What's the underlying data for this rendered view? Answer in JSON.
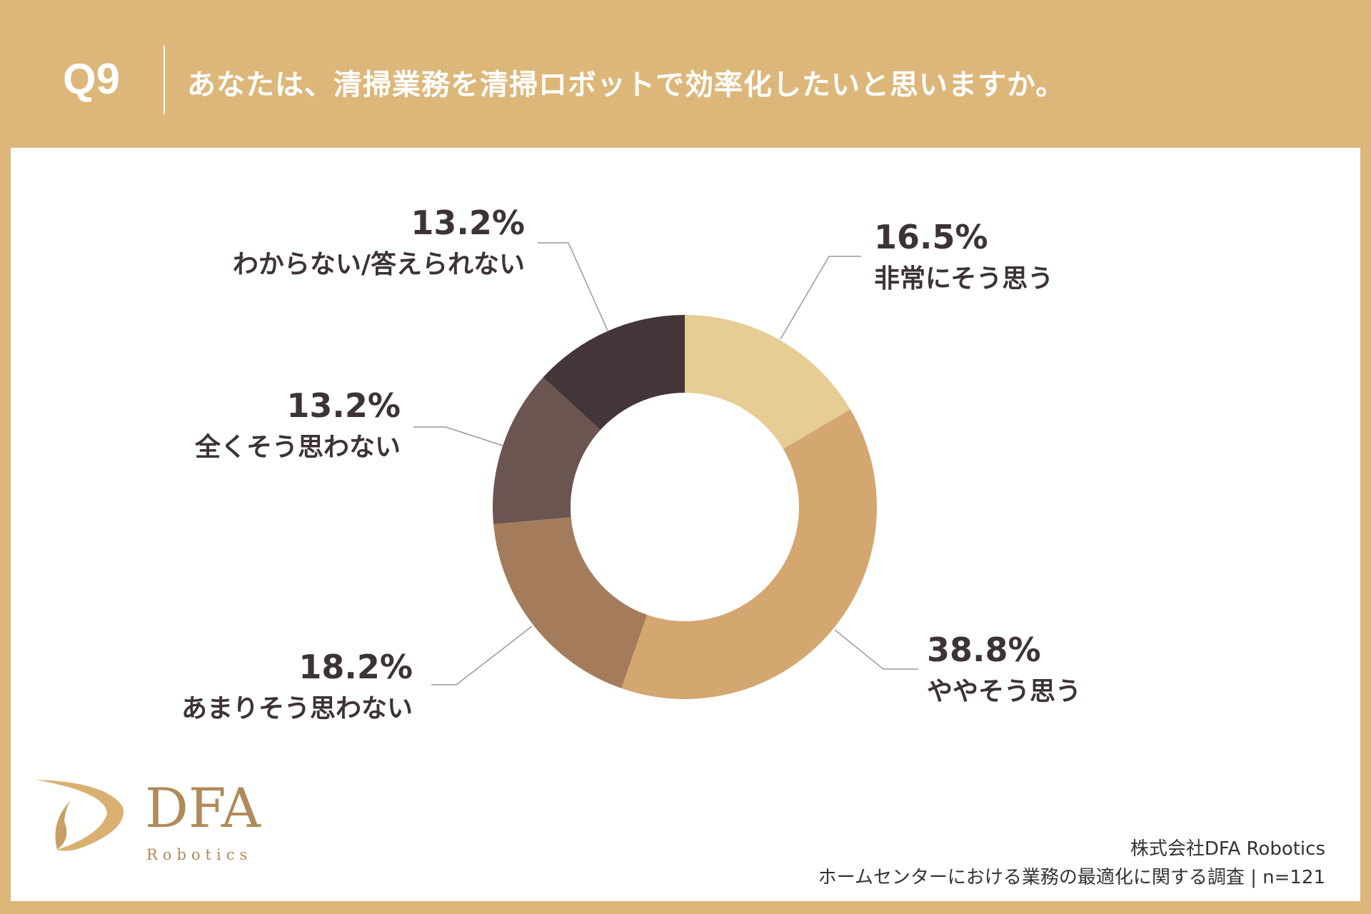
{
  "header": {
    "question_number": "Q9",
    "title": "あなたは、清掃業務を清掃ロボットで効率化したいと思いますか。"
  },
  "chart_data": {
    "type": "pie",
    "donut": true,
    "title": "あなたは、清掃業務を清掃ロボットで効率化したいと思いますか。",
    "slices": [
      {
        "label": "非常にそう思う",
        "value": 16.5,
        "display": "16.5%",
        "color": "#E5CD93"
      },
      {
        "label": "ややそう思う",
        "value": 38.8,
        "display": "38.8%",
        "color": "#D4A670"
      },
      {
        "label": "あまりそう思わない",
        "value": 18.2,
        "display": "18.2%",
        "color": "#A47C5C"
      },
      {
        "label": "全くそう思わない",
        "value": 13.2,
        "display": "13.2%",
        "color": "#6B5550"
      },
      {
        "label": "わからない/答えられない",
        "value": 13.2,
        "display": "13.2%",
        "color": "#443638"
      }
    ]
  },
  "logo": {
    "name": "DFA",
    "sub": "Robotics"
  },
  "footer": {
    "company": "株式会社DFA Robotics",
    "survey": "ホームセンターにおける業務の最適化に関する調査 | n=121"
  },
  "colors": {
    "header_bg": "#DDB77A",
    "text": "#3d3335"
  }
}
